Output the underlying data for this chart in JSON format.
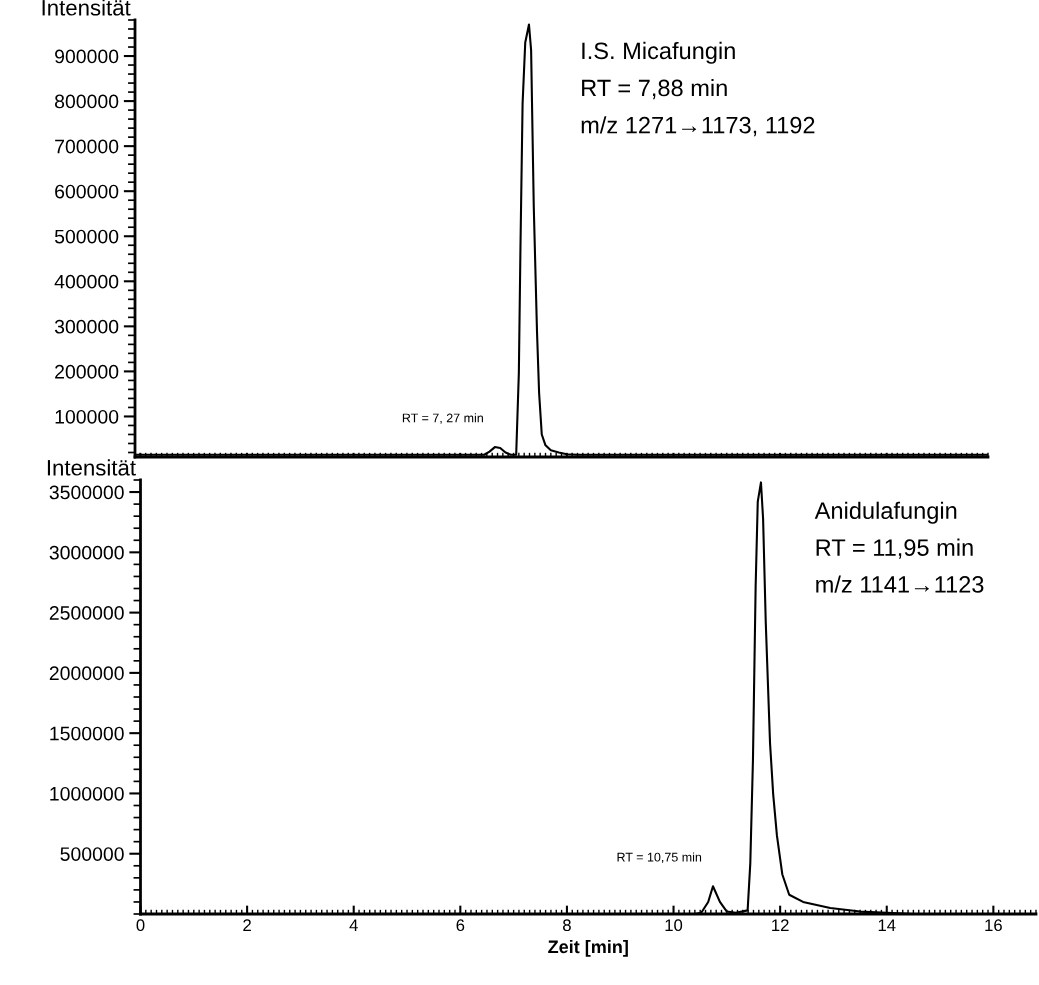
{
  "chart_data": [
    {
      "type": "line",
      "ylabel": "Intensität",
      "xlim": [
        -0.1,
        15.9
      ],
      "xticks": [
        0,
        2,
        4,
        6,
        8,
        10,
        12,
        14
      ],
      "ylim": [
        10000,
        980000
      ],
      "yticks": [
        100000,
        200000,
        300000,
        400000,
        500000,
        600000,
        700000,
        800000,
        900000
      ],
      "tick_labels": "y",
      "marker": "none",
      "line_style": "solid",
      "annotations": [
        "I.S. Micafungin",
        "RT = 7,88 min",
        "m/z 1271→1173, 1192",
        {
          "text": "RT = 7, 27 min",
          "x": 6.65,
          "y": 32000
        }
      ],
      "series": [
        {
          "color": "#000000",
          "x": [
            -0.1,
            6.45,
            6.55,
            6.65,
            6.75,
            6.85,
            6.95,
            7.05,
            7.1,
            7.13,
            7.17,
            7.22,
            7.29,
            7.33,
            7.38,
            7.44,
            7.48,
            7.53,
            7.6,
            7.7,
            7.85,
            8.0,
            8.2,
            15.9
          ],
          "values": [
            15000,
            15000,
            22000,
            32000,
            30000,
            20000,
            15000,
            15000,
            197000,
            473000,
            794000,
            930000,
            970000,
            913000,
            565000,
            290000,
            152000,
            60000,
            36000,
            25000,
            20000,
            16000,
            15000,
            15000
          ]
        }
      ]
    },
    {
      "type": "line",
      "ylabel": "Intensität",
      "xlabel": "Zeit [min]",
      "xlim": [
        0,
        16.8
      ],
      "xticks": [
        0,
        2,
        4,
        6,
        8,
        10,
        12,
        14,
        16
      ],
      "ylim": [
        0,
        3600000
      ],
      "yticks": [
        500000,
        1000000,
        1500000,
        2000000,
        2500000,
        3000000,
        3500000
      ],
      "marker": "none",
      "line_style": "solid",
      "annotations": [
        "Anidulafungin",
        "RT = 11,95 min",
        "m/z 1141→1123",
        {
          "text": "RT = 10,75 min",
          "x": 10.74,
          "y": 230000
        }
      ],
      "series": [
        {
          "color": "#000000",
          "x": [
            0,
            10.4,
            10.52,
            10.65,
            10.74,
            10.87,
            11.0,
            11.17,
            11.39,
            11.44,
            11.49,
            11.54,
            11.58,
            11.64,
            11.68,
            11.73,
            11.81,
            11.87,
            11.94,
            12.04,
            12.17,
            12.43,
            12.94,
            13.5,
            14.0,
            14.5,
            16.8
          ],
          "values": [
            0,
            0,
            10000,
            100000,
            230000,
            100000,
            20000,
            10000,
            30000,
            420000,
            1280000,
            2710000,
            3420000,
            3580000,
            3280000,
            2420000,
            1420000,
            990000,
            650000,
            330000,
            160000,
            100000,
            50000,
            20000,
            10000,
            0,
            0
          ]
        }
      ]
    }
  ]
}
